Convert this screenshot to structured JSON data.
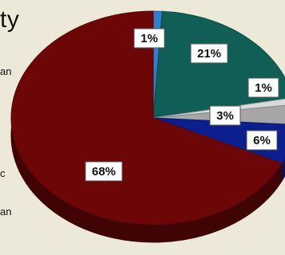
{
  "page": {
    "heading_fragment": "ty",
    "side_fragments": [
      "an",
      "c",
      "an"
    ]
  },
  "chart_data": {
    "type": "pie",
    "title": "",
    "three_d": true,
    "slices": [
      {
        "label": "1%",
        "value": 1,
        "color": "#2e7fcf"
      },
      {
        "label": "21%",
        "value": 21,
        "color": "#0f5f57"
      },
      {
        "label": "1%",
        "value": 1,
        "color": "#d9d9d9"
      },
      {
        "label": "3%",
        "value": 3,
        "color": "#a6a6a6"
      },
      {
        "label": "6%",
        "value": 6,
        "color": "#0b1f8f"
      },
      {
        "label": "68%",
        "value": 68,
        "color": "#6d0707"
      }
    ]
  }
}
